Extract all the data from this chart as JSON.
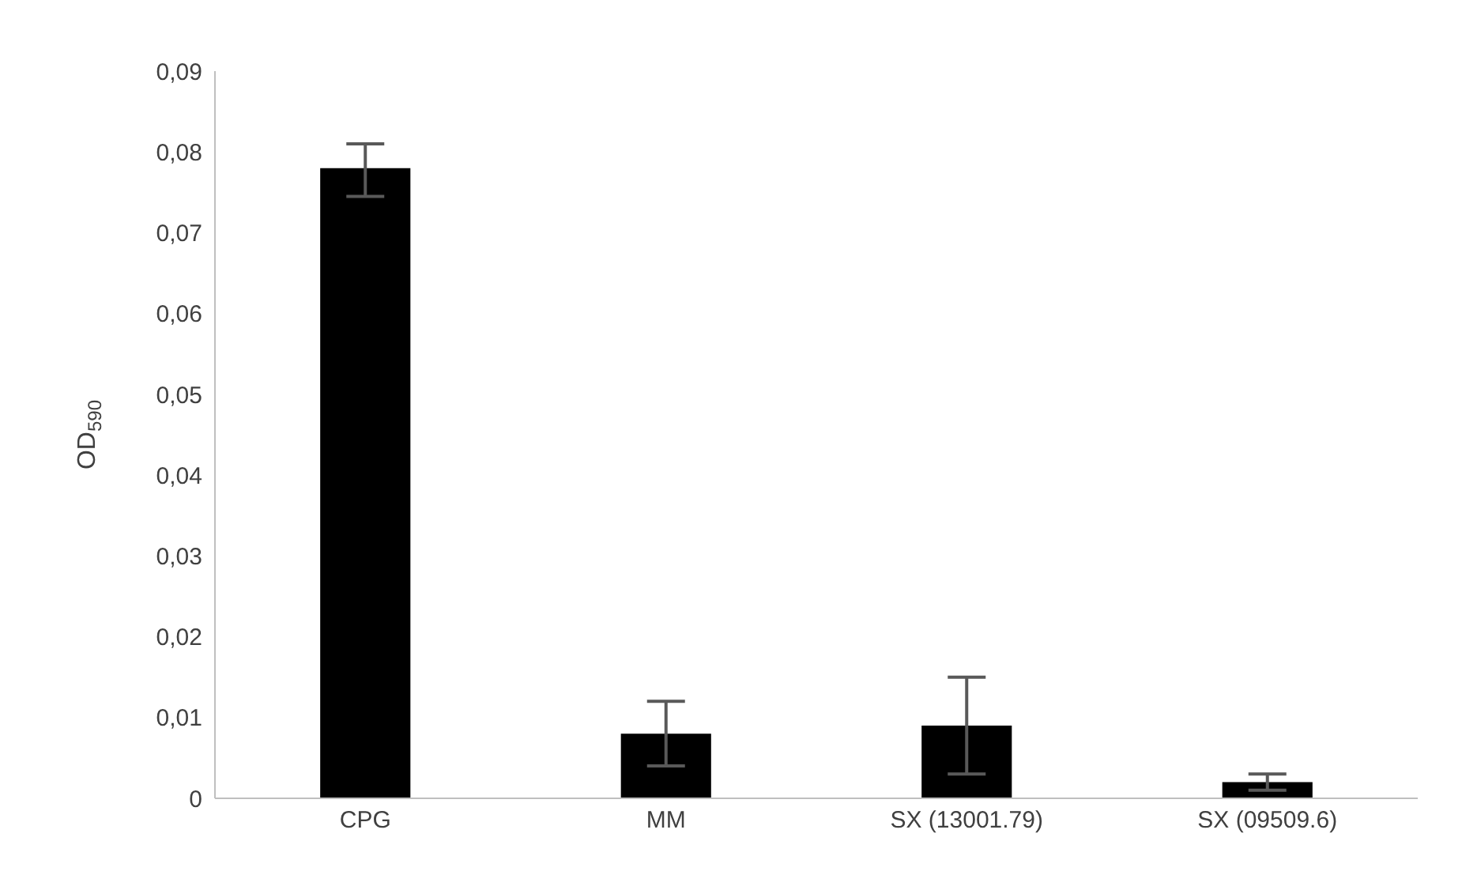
{
  "chart_data": {
    "type": "bar",
    "ylabel": "OD$_{590}$",
    "categories": [
      "CPG",
      "MM",
      "SX (13001.79)",
      "SX (09509.6)"
    ],
    "values": [
      0.078,
      0.008,
      0.009,
      0.002
    ],
    "errors": [
      [
        0.0745,
        0.081
      ],
      [
        0.004,
        0.012
      ],
      [
        0.003,
        0.015
      ],
      [
        0.001,
        0.003
      ]
    ],
    "color": "#000000",
    "ylim": [
      0,
      0.09
    ],
    "yticks": [
      0,
      {
        "value": 0.01,
        "label": "0,01"
      },
      {
        "value": 0.02,
        "label": "0,02"
      },
      {
        "value": 0.03,
        "label": "0,03"
      },
      {
        "value": 0.04,
        "label": "0,04"
      },
      {
        "value": 0.05,
        "label": "0,05"
      },
      {
        "value": 0.06,
        "label": "0,06"
      },
      {
        "value": 0.07,
        "label": "0,07"
      },
      {
        "value": 0.08,
        "label": "0,08"
      },
      {
        "value": 0.09,
        "label": "0,09"
      }
    ],
    "grid": false
  }
}
